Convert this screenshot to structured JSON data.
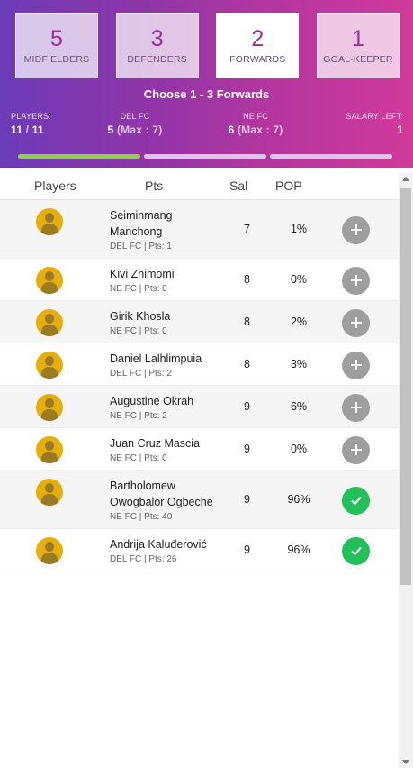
{
  "positions": [
    {
      "count": "5",
      "label": "MIDFIELDERS",
      "active": false
    },
    {
      "count": "3",
      "label": "DEFENDERS",
      "active": false
    },
    {
      "count": "2",
      "label": "FORWARDS",
      "active": true
    },
    {
      "count": "1",
      "label": "GOAL-KEEPER",
      "active": false
    }
  ],
  "instruction": "Choose 1 - 3 Forwards",
  "stats": {
    "players_label": "PLAYERS:",
    "players_selected": "11",
    "players_sep": " / ",
    "players_total": "11",
    "team1_label": "DEL FC",
    "team1_count": "5",
    "team1_max": " (Max : 7)",
    "team2_label": "NE FC",
    "team2_count": "6",
    "team2_max": " (Max : 7)",
    "salary_label": "SALARY LEFT:",
    "salary_value": "1"
  },
  "progress": {
    "segments": 3,
    "filled": 1,
    "color_filled": "#8fd14a",
    "color_empty": "#d9c9e6"
  },
  "columns": {
    "players": "Players",
    "pts": "Pts",
    "sal": "Sal",
    "pop": "POP"
  },
  "players": [
    {
      "name": "Seiminmang Manchong",
      "meta": "DEL FC | Pts: 1",
      "sal": "7",
      "pop": "1%",
      "selected": false
    },
    {
      "name": "Kivi Zhimomi",
      "meta": "NE FC | Pts: 0",
      "sal": "8",
      "pop": "0%",
      "selected": false
    },
    {
      "name": "Girik Khosla",
      "meta": "NE FC | Pts: 0",
      "sal": "8",
      "pop": "2%",
      "selected": false
    },
    {
      "name": "Daniel Lalhlimpuia",
      "meta": "DEL FC | Pts: 2",
      "sal": "8",
      "pop": "3%",
      "selected": false
    },
    {
      "name": "Augustine Okrah",
      "meta": "NE FC | Pts: 2",
      "sal": "9",
      "pop": "6%",
      "selected": false
    },
    {
      "name": "Juan Cruz Mascia",
      "meta": "NE FC | Pts: 0",
      "sal": "9",
      "pop": "0%",
      "selected": false
    },
    {
      "name": "Bartholomew Owogbalor Ogbeche",
      "meta": "NE FC | Pts: 40",
      "sal": "9",
      "pop": "96%",
      "selected": true
    },
    {
      "name": "Andrija Kaluđerović",
      "meta": "DEL FC | Pts: 26",
      "sal": "9",
      "pop": "96%",
      "selected": true
    }
  ],
  "icons": {
    "add": "plus-icon",
    "added": "check-icon",
    "avatar": "player-avatar-icon"
  },
  "colors": {
    "accent": "#9b2d9f",
    "added": "#21c05a",
    "add": "#9e9e9e",
    "avatar": "#e6ae0a"
  }
}
